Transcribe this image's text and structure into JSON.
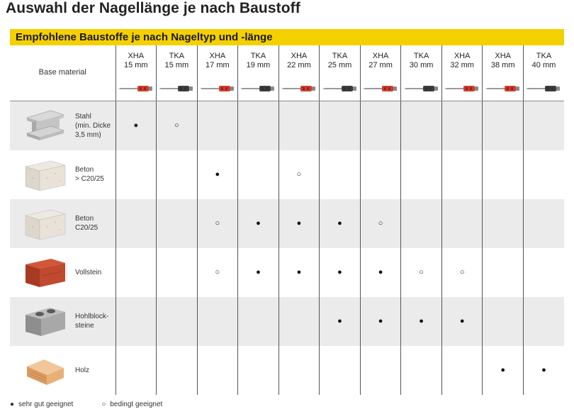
{
  "title": "Auswahl der Nagellänge je nach Baustoff",
  "banner": "Empfohlene Baustoffe je nach Nageltyp und -länge",
  "base_material_label": "Base material",
  "colors": {
    "banner": "#f5d000",
    "xha": "#d63a2a",
    "tka": "#3a3f3a",
    "shade": "#ebebeb"
  },
  "nails": [
    {
      "type": "XHA",
      "length": "15 mm"
    },
    {
      "type": "TKA",
      "length": "15 mm"
    },
    {
      "type": "XHA",
      "length": "17 mm"
    },
    {
      "type": "TKA",
      "length": "19 mm"
    },
    {
      "type": "XHA",
      "length": "22 mm"
    },
    {
      "type": "TKA",
      "length": "25 mm"
    },
    {
      "type": "XHA",
      "length": "27 mm"
    },
    {
      "type": "TKA",
      "length": "30 mm"
    },
    {
      "type": "XHA",
      "length": "32 mm"
    },
    {
      "type": "XHA",
      "length": "38 mm"
    },
    {
      "type": "TKA",
      "length": "40 mm"
    }
  ],
  "materials": [
    {
      "name": "Stahl\n(min. Dicke\n3,5 mm)",
      "icon": "steel-beam-icon",
      "cells": [
        "●",
        "○",
        "",
        "",
        "",
        "",
        "",
        "",
        "",
        "",
        ""
      ]
    },
    {
      "name": "Beton\n> C20/25",
      "icon": "concrete-block-icon",
      "cells": [
        "",
        "",
        "●",
        "",
        "○",
        "",
        "",
        "",
        "",
        "",
        ""
      ]
    },
    {
      "name": "Beton\nC20/25",
      "icon": "concrete-block-icon",
      "cells": [
        "",
        "",
        "○",
        "●",
        "●",
        "●",
        "○",
        "",
        "",
        "",
        ""
      ]
    },
    {
      "name": "Vollstein",
      "icon": "solid-brick-icon",
      "cells": [
        "",
        "",
        "○",
        "●",
        "●",
        "●",
        "●",
        "○",
        "○",
        "",
        ""
      ]
    },
    {
      "name": "Hohlblock-\nsteine",
      "icon": "hollow-block-icon",
      "cells": [
        "",
        "",
        "",
        "",
        "",
        "●",
        "●",
        "●",
        "●",
        "",
        ""
      ]
    },
    {
      "name": "Holz",
      "icon": "wood-block-icon",
      "cells": [
        "",
        "",
        "",
        "",
        "",
        "",
        "",
        "",
        "",
        "●",
        "●"
      ]
    }
  ],
  "legend": {
    "good_symbol": "●",
    "good_label": "sehr gut geeignet",
    "cond_symbol": "○",
    "cond_label": "bedingt geeignet"
  }
}
